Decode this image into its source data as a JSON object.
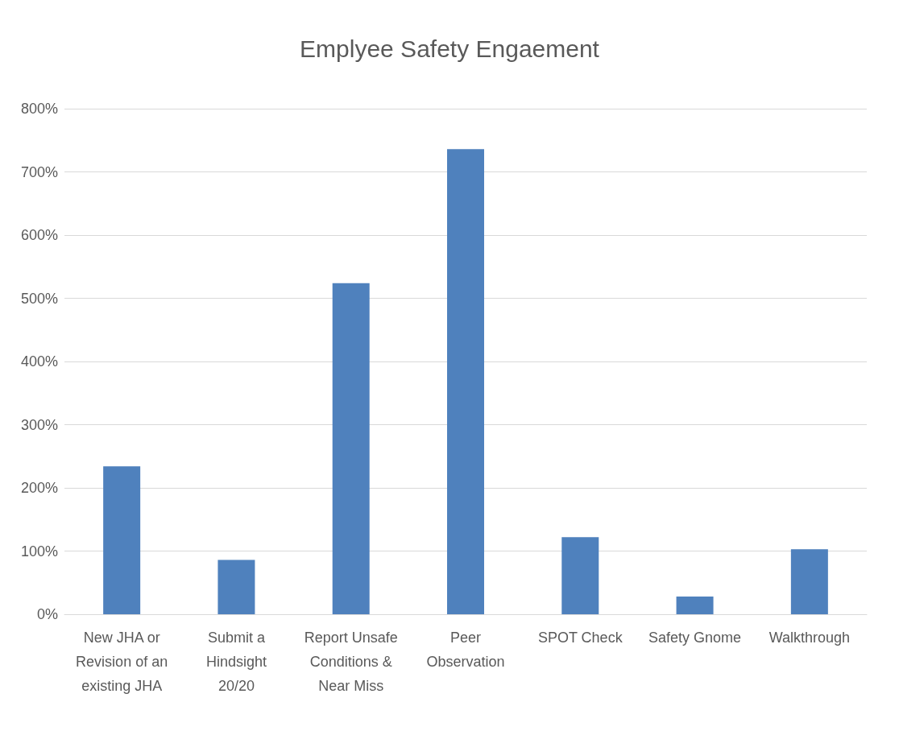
{
  "chart_data": {
    "type": "bar",
    "title": "Emplyee Safety Engaement",
    "categories": [
      "New JHA or\nRevision of an\nexisting JHA",
      "Submit a\nHindsight\n20/20",
      "Report Unsafe\nConditions &\nNear Miss",
      "Peer\nObservation",
      "SPOT Check",
      "Safety Gnome",
      "Walkthrough"
    ],
    "values": [
      234,
      86,
      524,
      736,
      122,
      28,
      103
    ],
    "color": "#4f81bd",
    "ylim": [
      0,
      800
    ],
    "yticks": [
      {
        "value": 0,
        "label": "0%"
      },
      {
        "value": 100,
        "label": "100%"
      },
      {
        "value": 200,
        "label": "200%"
      },
      {
        "value": 300,
        "label": "300%"
      },
      {
        "value": 400,
        "label": "400%"
      },
      {
        "value": 500,
        "label": "500%"
      },
      {
        "value": 600,
        "label": "600%"
      },
      {
        "value": 700,
        "label": "700%"
      },
      {
        "value": 800,
        "label": "800%"
      }
    ],
    "grid": "y"
  }
}
